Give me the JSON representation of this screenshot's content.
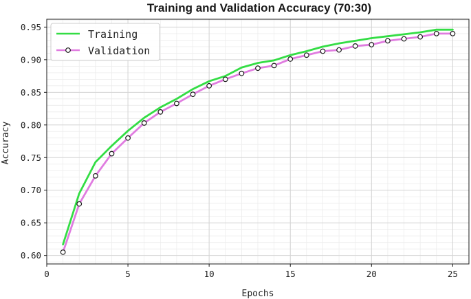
{
  "chart_data": {
    "type": "line",
    "title": "Training and Validation Accuracy (70:30)",
    "xlabel": "Epochs",
    "ylabel": "Accuracy",
    "xlim": [
      0,
      26
    ],
    "ylim": [
      0.587,
      0.962
    ],
    "xticks": [
      0,
      5,
      10,
      15,
      20,
      25
    ],
    "yticks": [
      0.6,
      0.65,
      0.7,
      0.75,
      0.8,
      0.85,
      0.9,
      0.95
    ],
    "xtick_labels": [
      "0",
      "5",
      "10",
      "15",
      "20",
      "25"
    ],
    "ytick_labels": [
      "0.60",
      "0.65",
      "0.70",
      "0.75",
      "0.80",
      "0.85",
      "0.90",
      "0.95"
    ],
    "grid": true,
    "legend_position": "top-left",
    "x": [
      1,
      2,
      3,
      4,
      5,
      6,
      7,
      8,
      9,
      10,
      11,
      12,
      13,
      14,
      15,
      16,
      17,
      18,
      19,
      20,
      21,
      22,
      23,
      24,
      25
    ],
    "series": [
      {
        "name": "Training",
        "color": "#33dd44",
        "marker": "none",
        "values": [
          0.617,
          0.695,
          0.743,
          0.768,
          0.791,
          0.811,
          0.827,
          0.84,
          0.855,
          0.867,
          0.875,
          0.888,
          0.895,
          0.899,
          0.907,
          0.913,
          0.92,
          0.925,
          0.929,
          0.933,
          0.936,
          0.939,
          0.942,
          0.946,
          0.946
        ]
      },
      {
        "name": "Validation",
        "color": "#e07ce0",
        "marker": "circle",
        "values": [
          0.605,
          0.679,
          0.722,
          0.756,
          0.78,
          0.803,
          0.82,
          0.833,
          0.847,
          0.86,
          0.87,
          0.879,
          0.887,
          0.891,
          0.901,
          0.907,
          0.913,
          0.915,
          0.921,
          0.923,
          0.929,
          0.932,
          0.935,
          0.94,
          0.94
        ]
      }
    ]
  }
}
